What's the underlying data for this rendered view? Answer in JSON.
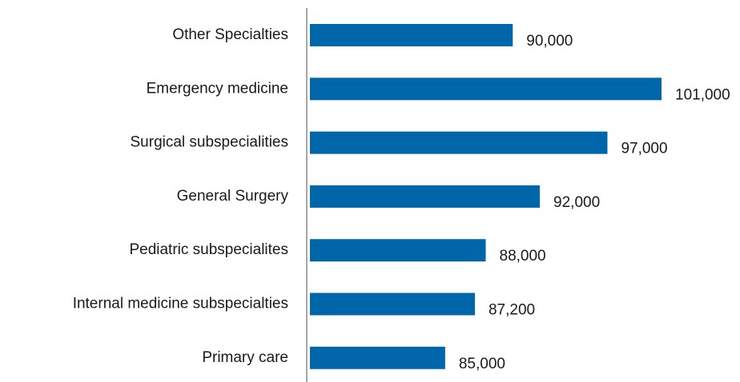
{
  "chart_data": {
    "type": "bar",
    "orientation": "horizontal",
    "categories": [
      "Other Specialties",
      "Emergency medicine",
      "Surgical subspecialities",
      "General Surgery",
      "Pediatric subspecialites",
      "Internal medicine subspecialties",
      "Primary care"
    ],
    "values": [
      90000,
      101000,
      97000,
      92000,
      88000,
      87200,
      85000
    ],
    "value_labels": [
      "90,000",
      "101,000",
      "97,000",
      "92,000",
      "88,000",
      "87,200",
      "85,000"
    ],
    "color": "#0066aa",
    "xlim": [
      75000,
      101000
    ]
  }
}
